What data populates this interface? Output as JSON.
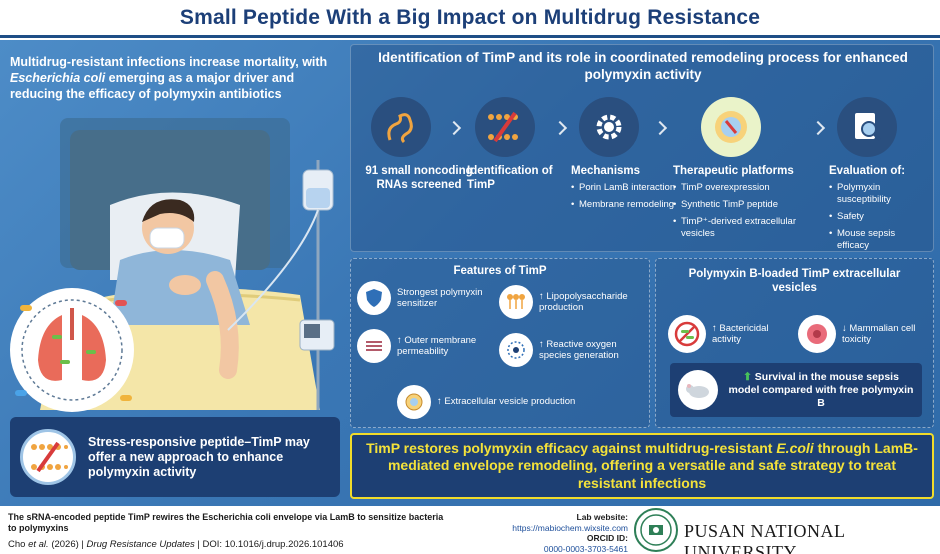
{
  "header": {
    "title": "Small Peptide With a Big Impact on Multidrug Resistance"
  },
  "intro": {
    "part1": "Multidrug-resistant infections increase mortality, with ",
    "species": "Escherichia coli",
    "part2": " emerging as a major driver and reducing the efficacy of polymyxin antibiotics"
  },
  "stress_box": {
    "text": "Stress-responsive peptide–TimP may offer a new approach to enhance polymyxin activity"
  },
  "identification": {
    "title": "Identification of TimP and its role in coordinated remodeling process for enhanced polymyxin activity",
    "steps": [
      {
        "title": "91 small noncoding RNAs screened",
        "bullets": []
      },
      {
        "title": "Identification of TimP",
        "bullets": []
      },
      {
        "title": "Mechanisms",
        "bullets": [
          "Porin LamB interaction",
          "Membrane remodeling"
        ]
      },
      {
        "title": "Therapeutic platforms",
        "bullets": [
          "TimP overexpression",
          "Synthetic TimP peptide",
          "TimP⁺-derived extracellular vesicles"
        ]
      },
      {
        "title": "Evaluation of:",
        "bullets": [
          "Polymyxin susceptibility",
          "Safety",
          "Mouse sepsis efficacy"
        ]
      }
    ]
  },
  "features": {
    "title": "Features of TimP",
    "items": [
      "Strongest polymyxin sensitizer",
      "↑ Lipopolysaccharide production",
      "↑ Outer membrane permeability",
      "↑ Reactive oxygen species generation",
      "↑ Extracellular vesicle production"
    ]
  },
  "polymyxin": {
    "title": "Polymyxin B-loaded TimP extracellular vesicles",
    "items": [
      "↑ Bactericidal activity",
      "↓ Mammalian cell toxicity"
    ],
    "survival": "Survival in the mouse sepsis model compared with free polymyxin B"
  },
  "conclusion": {
    "part1": "TimP restores polymyxin efficacy against multidrug-resistant ",
    "species": "E.coli",
    "part2": " through LamB-mediated envelope remodeling, offering a versatile and safe strategy to treat resistant infections"
  },
  "footer": {
    "caption": "The sRNA-encoded peptide TimP rewires the Escherichia coli envelope via LamB to sensitize bacteria to polymyxins",
    "cite_pre": "Cho ",
    "cite_etal": "et al.",
    "cite_year": " (2026) | ",
    "cite_journal": "Drug Resistance Updates",
    "cite_doi": " | DOI: 10.1016/j.drup.2026.101406",
    "lab_label": "Lab website:",
    "lab_url": "https://mabiochem.wixsite.com",
    "orcid_label": "ORCID ID:",
    "orcid_value": "0000-0003-3703-5461",
    "university": "PUSAN NATIONAL UNIVERSITY"
  },
  "colors": {
    "header_text": "#1c3f78",
    "panel": "#3a77b5",
    "box": "#1d3f73",
    "highlight": "#f4e23a"
  }
}
